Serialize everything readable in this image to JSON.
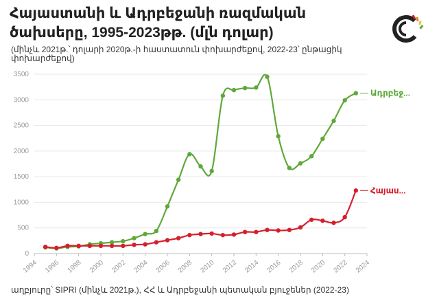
{
  "header": {
    "title": "Հայաստանի և Ադրբեջանի ռազմական ծախսերը, 1995-2023թթ. (մլն դոլար)",
    "subtitle": "(մինչև 2021թ.՝ դոլարի 2020թ.-ի հաստատուն փոխարժեքով, 2022-23՝ ընթացիկ փոխարժեքով)"
  },
  "footer": {
    "source": "աղբյուրը՝ SIPRI (մինչև 2021թ.), ՀՀ և Ադրբեջանի պետական բյուջեներ (2022-23)"
  },
  "logo": {
    "icon": "c-logo-icon",
    "accent": "#e8c53a"
  },
  "chart_data": {
    "type": "line",
    "title": "Հայաստանի և Ադրբեջանի ռազմական ծախսերը, 1995-2023թթ. (մլն դոլար)",
    "xlim": [
      1994,
      2024
    ],
    "ylim": [
      0,
      3500
    ],
    "x_ticks": [
      "1994",
      "1996",
      "1998",
      "2000",
      "2002",
      "2004",
      "2006",
      "2008",
      "2010",
      "2012",
      "2014",
      "2016",
      "2018",
      "2020",
      "2022",
      "2024"
    ],
    "y_ticks": [
      "0",
      "500",
      "1000",
      "1500",
      "2000",
      "2500",
      "3000",
      "3500"
    ],
    "grid": "horizontal",
    "series": [
      {
        "name": "Ադրբեջ...",
        "color": "#5fa83a",
        "x": [
          1995,
          1996,
          1997,
          1998,
          1999,
          2000,
          2001,
          2002,
          2003,
          2004,
          2005,
          2006,
          2007,
          2008,
          2009,
          2010,
          2011,
          2012,
          2013,
          2014,
          2015,
          2016,
          2017,
          2018,
          2019,
          2020,
          2021,
          2022,
          2023
        ],
        "values": [
          120,
          100,
          130,
          140,
          180,
          200,
          220,
          240,
          300,
          380,
          440,
          920,
          1440,
          1940,
          1700,
          1610,
          3080,
          3190,
          3230,
          3240,
          3450,
          2290,
          1670,
          1760,
          1900,
          2240,
          2590,
          2990,
          3130
        ]
      },
      {
        "name": "Հայաս...",
        "color": "#d61f2c",
        "x": [
          1995,
          1996,
          1997,
          1998,
          1999,
          2000,
          2001,
          2002,
          2003,
          2004,
          2005,
          2006,
          2007,
          2008,
          2009,
          2010,
          2011,
          2012,
          2013,
          2014,
          2015,
          2016,
          2017,
          2018,
          2019,
          2020,
          2021,
          2022,
          2023
        ],
        "values": [
          130,
          110,
          150,
          150,
          150,
          150,
          150,
          150,
          170,
          180,
          220,
          260,
          300,
          360,
          380,
          390,
          360,
          370,
          420,
          420,
          460,
          450,
          460,
          510,
          660,
          640,
          600,
          710,
          1230
        ]
      }
    ]
  }
}
